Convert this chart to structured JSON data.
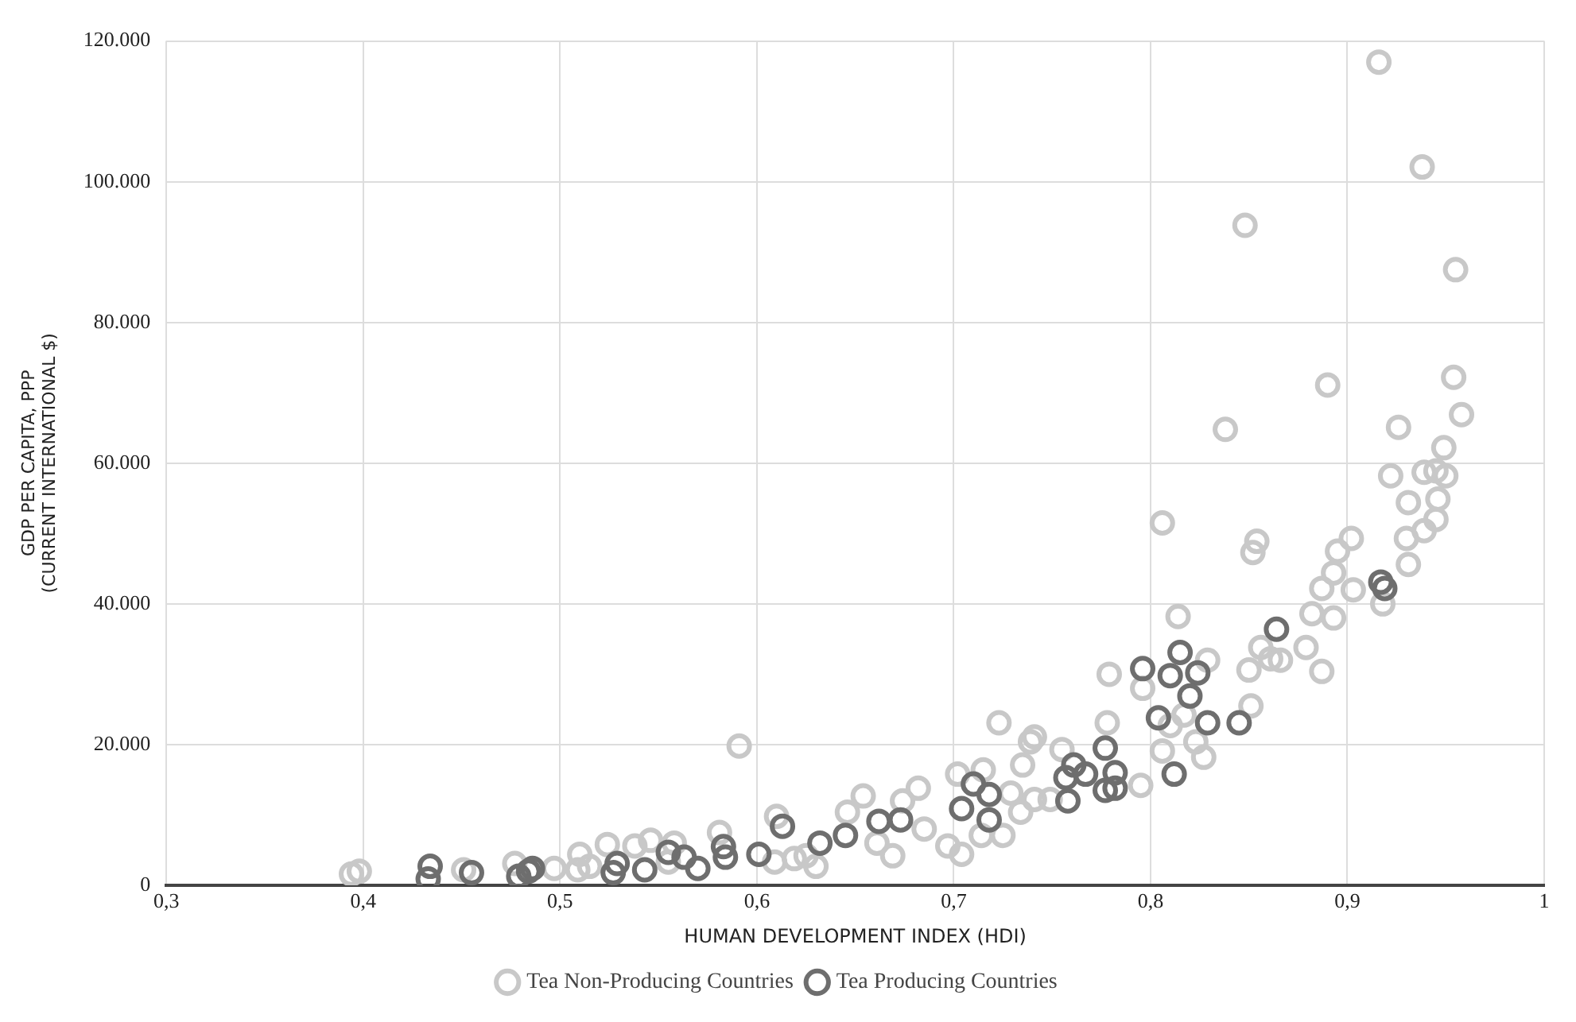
{
  "chart_data": {
    "type": "scatter",
    "xlabel": "HUMAN DEVELOPMENT INDEX (HDI)",
    "ylabel": "GDP PER CAPITA, PPP\n(CURRENT INTERNATIONAL $)",
    "xlim": [
      0.3,
      1
    ],
    "xticks": [
      {
        "value": 0.3,
        "label": "0,3"
      },
      {
        "value": 0.4,
        "label": "0,4"
      },
      {
        "value": 0.5,
        "label": "0,5"
      },
      {
        "value": 0.6,
        "label": "0,6"
      },
      {
        "value": 0.7,
        "label": "0,7"
      },
      {
        "value": 0.8,
        "label": "0,8"
      },
      {
        "value": 0.9,
        "label": "0,9"
      },
      1
    ],
    "ylim": [
      0,
      120000
    ],
    "yticks": [
      0,
      {
        "value": 20000,
        "label": "20.000"
      },
      {
        "value": 40000,
        "label": "40.000"
      },
      {
        "value": 60000,
        "label": "60.000"
      },
      {
        "value": 80000,
        "label": "80.000"
      },
      {
        "value": 100000,
        "label": "100.000"
      },
      {
        "value": 120000,
        "label": "120.000"
      }
    ],
    "grid": true,
    "legend": "bottom",
    "marker": "circle",
    "series": [
      {
        "name": "Tea Non-Producing Countries",
        "color": "#c8c8c8",
        "x": [
          0.394,
          0.398,
          0.451,
          0.477,
          0.497,
          0.51,
          0.509,
          0.515,
          0.524,
          0.538,
          0.546,
          0.558,
          0.555,
          0.581,
          0.591,
          0.61,
          0.609,
          0.619,
          0.625,
          0.63,
          0.646,
          0.654,
          0.661,
          0.669,
          0.674,
          0.682,
          0.685,
          0.697,
          0.704,
          0.702,
          0.715,
          0.714,
          0.725,
          0.729,
          0.723,
          0.735,
          0.739,
          0.741,
          0.741,
          0.734,
          0.749,
          0.755,
          0.778,
          0.779,
          0.795,
          0.806,
          0.796,
          0.814,
          0.806,
          0.829,
          0.817,
          0.81,
          0.823,
          0.827,
          0.854,
          0.852,
          0.856,
          0.85,
          0.861,
          0.866,
          0.851,
          0.89,
          0.838,
          0.902,
          0.895,
          0.893,
          0.887,
          0.903,
          0.882,
          0.893,
          0.879,
          0.887,
          0.918,
          0.926,
          0.922,
          0.931,
          0.93,
          0.931,
          0.939,
          0.945,
          0.939,
          0.945,
          0.95,
          0.946,
          0.949,
          0.958,
          0.954,
          0.916,
          0.938,
          0.848,
          0.955
        ],
        "values": [
          1600,
          2000,
          2200,
          3100,
          2400,
          4400,
          2200,
          2700,
          5800,
          5600,
          6400,
          6000,
          3300,
          7500,
          19800,
          9800,
          3300,
          3800,
          4200,
          2700,
          10400,
          12700,
          6000,
          4200,
          12000,
          13800,
          8000,
          5600,
          4400,
          15800,
          16400,
          7100,
          7100,
          13100,
          23100,
          17100,
          20400,
          21100,
          12200,
          10400,
          12200,
          19300,
          23100,
          30000,
          14200,
          19100,
          28000,
          38200,
          51500,
          32000,
          24200,
          22700,
          20400,
          18200,
          48900,
          47300,
          33800,
          30600,
          32200,
          32000,
          25500,
          71100,
          64800,
          49300,
          47500,
          44400,
          42200,
          42000,
          38600,
          38000,
          33800,
          30400,
          40000,
          65100,
          58200,
          54400,
          49300,
          45600,
          50400,
          52000,
          58700,
          58900,
          58200,
          54900,
          62200,
          66900,
          72200,
          117000,
          102100,
          93800,
          87500
        ]
      },
      {
        "name": "Tea Producing Countries",
        "color": "#6e6e6e",
        "x": [
          0.434,
          0.433,
          0.455,
          0.479,
          0.484,
          0.486,
          0.529,
          0.527,
          0.543,
          0.555,
          0.563,
          0.57,
          0.583,
          0.584,
          0.601,
          0.613,
          0.632,
          0.645,
          0.662,
          0.673,
          0.71,
          0.704,
          0.718,
          0.718,
          0.757,
          0.761,
          0.767,
          0.758,
          0.777,
          0.782,
          0.777,
          0.782,
          0.796,
          0.815,
          0.81,
          0.824,
          0.82,
          0.804,
          0.829,
          0.812,
          0.845,
          0.864,
          0.917,
          0.919
        ],
        "values": [
          2700,
          900,
          1800,
          1300,
          2000,
          2400,
          3100,
          1800,
          2200,
          4700,
          4000,
          2400,
          5500,
          4000,
          4400,
          8400,
          6000,
          7100,
          9100,
          9300,
          14400,
          10900,
          12900,
          9300,
          15300,
          17100,
          15800,
          12000,
          19500,
          16000,
          13500,
          13800,
          30800,
          33100,
          29800,
          30200,
          26900,
          23800,
          23100,
          15800,
          23100,
          36400,
          43100,
          42200
        ]
      }
    ]
  }
}
